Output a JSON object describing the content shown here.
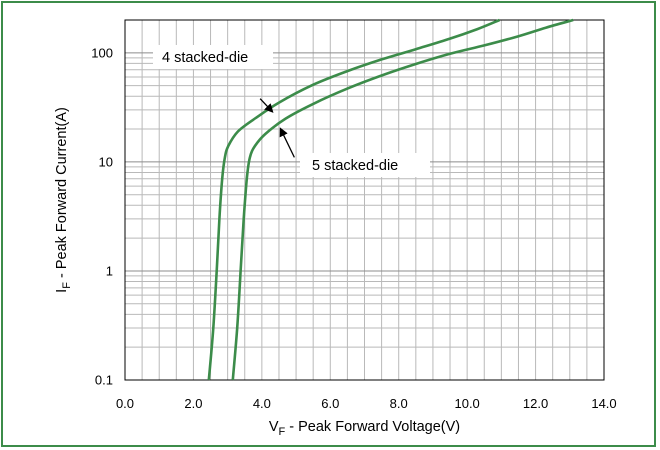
{
  "chart_data": {
    "type": "line",
    "xlabel_main": "V",
    "xlabel_sub": "F",
    "xlabel_rest": " - Peak Forward Voltage(V)",
    "ylabel_main": "I",
    "ylabel_sub": "F",
    "ylabel_rest": " - Peak Forward Current(A)",
    "xlim": [
      0,
      14
    ],
    "ylim": [
      0.1,
      200
    ],
    "yscale": "log",
    "grid": true,
    "x_ticks": [
      "0.0",
      "2.0",
      "4.0",
      "6.0",
      "8.0",
      "10.0",
      "12.0",
      "14.0"
    ],
    "x_tick_values": [
      0,
      2,
      4,
      6,
      8,
      10,
      12,
      14
    ],
    "y_ticks": [
      "0.1",
      "1",
      "10",
      "100"
    ],
    "y_tick_values": [
      0.1,
      1,
      10,
      100
    ],
    "line_color": "#3c8c4a",
    "frame_color": "#3c8c4a",
    "series": [
      {
        "points": [
          [
            2.45,
            0.1
          ],
          [
            2.58,
            0.3
          ],
          [
            2.68,
            1
          ],
          [
            2.76,
            3
          ],
          [
            2.84,
            7
          ],
          [
            2.92,
            11
          ],
          [
            3.02,
            14
          ],
          [
            3.3,
            19
          ],
          [
            3.8,
            25
          ],
          [
            4.5,
            35
          ],
          [
            5.5,
            51
          ],
          [
            6.5,
            68
          ],
          [
            7.5,
            87
          ],
          [
            8.5,
            108
          ],
          [
            9.5,
            135
          ],
          [
            10.3,
            165
          ],
          [
            10.95,
            200
          ]
        ]
      },
      {
        "points": [
          [
            3.15,
            0.1
          ],
          [
            3.28,
            0.3
          ],
          [
            3.38,
            1
          ],
          [
            3.47,
            3
          ],
          [
            3.56,
            7
          ],
          [
            3.65,
            11
          ],
          [
            3.8,
            14
          ],
          [
            4.1,
            18
          ],
          [
            4.7,
            25
          ],
          [
            5.5,
            34
          ],
          [
            6.5,
            47
          ],
          [
            7.5,
            62
          ],
          [
            8.5,
            79
          ],
          [
            9.5,
            98
          ],
          [
            10.5,
            117
          ],
          [
            11.5,
            142
          ],
          [
            12.3,
            170
          ],
          [
            13.1,
            200
          ]
        ]
      }
    ],
    "annotations": [
      {
        "text": "4 stacked-die",
        "arrow_from": [
          3.95,
          38
        ],
        "arrow_to": [
          4.3,
          29
        ]
      },
      {
        "text": "5 stacked-die",
        "arrow_from": [
          4.95,
          11
        ],
        "arrow_to": [
          4.55,
          20
        ]
      }
    ]
  }
}
